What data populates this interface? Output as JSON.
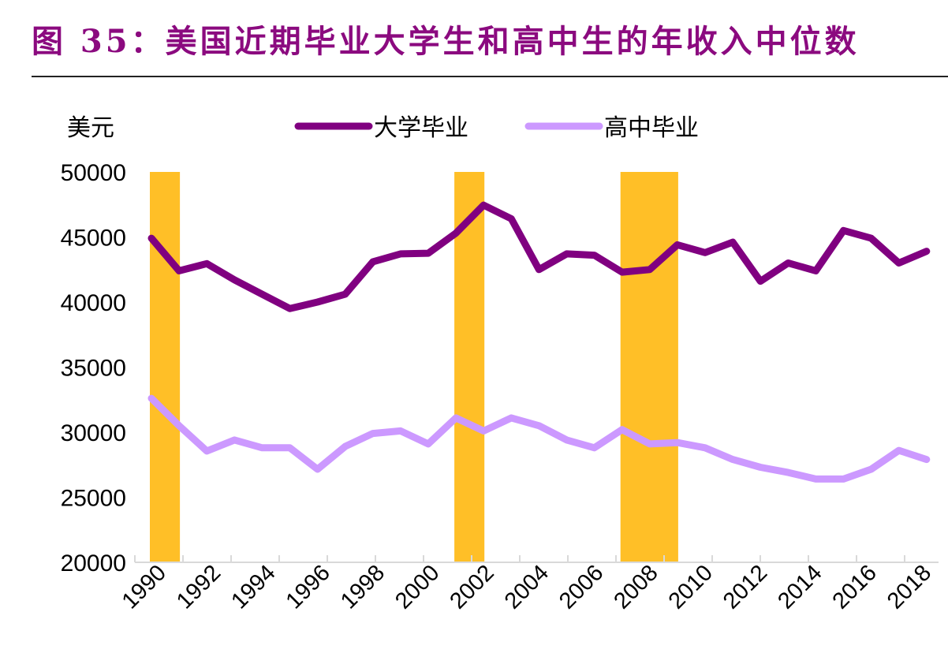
{
  "title": "图 35：美国近期毕业大学生和高中生的年收入中位数",
  "chart_data": {
    "type": "line",
    "title": "图 35：美国近期毕业大学生和高中生的年收入中位数",
    "ylabel": "美元",
    "xlabel": "",
    "ylim": [
      20000,
      50000
    ],
    "yticks": [
      20000,
      25000,
      30000,
      35000,
      40000,
      45000,
      50000
    ],
    "x": [
      1990,
      1991,
      1992,
      1993,
      1994,
      1995,
      1996,
      1997,
      1998,
      1999,
      2000,
      2001,
      2002,
      2003,
      2004,
      2005,
      2006,
      2007,
      2008,
      2009,
      2010,
      2011,
      2012,
      2013,
      2014,
      2015,
      2016,
      2017,
      2018
    ],
    "xtick_labels": [
      "1990",
      "1992",
      "1994",
      "1996",
      "1998",
      "2000",
      "2002",
      "2004",
      "2006",
      "2008",
      "2010",
      "2012",
      "2014",
      "2016",
      "2018"
    ],
    "legend_position": "top",
    "grid": false,
    "series": [
      {
        "name": "大学毕业",
        "color": "#800080",
        "values": [
          44900,
          42400,
          42950,
          41700,
          40600,
          39500,
          40000,
          40600,
          43100,
          43700,
          43750,
          45300,
          47450,
          46400,
          42500,
          43700,
          43600,
          42300,
          42500,
          44400,
          43800,
          44600,
          41600,
          43000,
          42400,
          45500,
          44900,
          43000,
          43900
        ]
      },
      {
        "name": "高中毕业",
        "color": "#CC99FF",
        "values": [
          32600,
          30500,
          28550,
          29400,
          28800,
          28800,
          27150,
          28900,
          29900,
          30100,
          29100,
          31100,
          30100,
          31100,
          30500,
          29400,
          28800,
          30200,
          29100,
          29200,
          28800,
          27900,
          27300,
          26900,
          26400,
          26400,
          27150,
          28600,
          27900
        ]
      }
    ],
    "shaded_periods": {
      "color": "#FFBF27",
      "ranges": [
        [
          1990,
          1991
        ],
        [
          2001,
          2002
        ],
        [
          2007,
          2009
        ]
      ]
    }
  }
}
